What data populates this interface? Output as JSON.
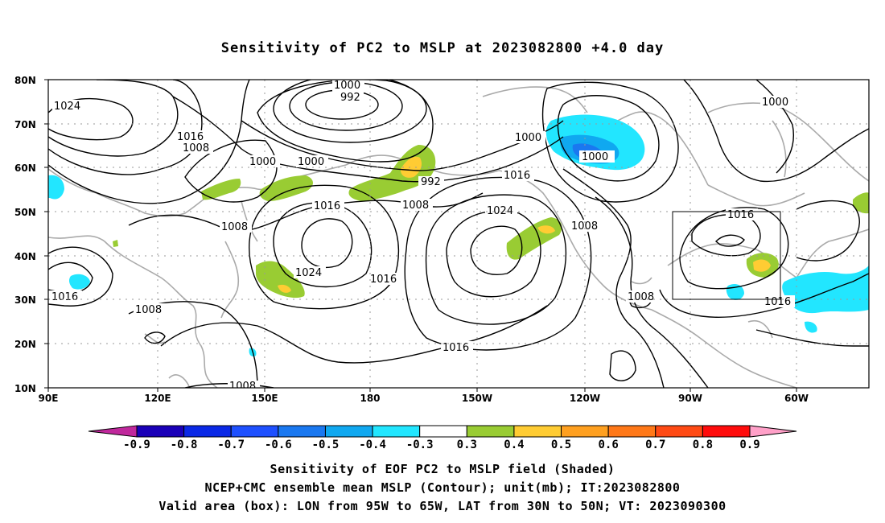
{
  "title": "Sensitivity of PC2 to MSLP at 2023082800 +4.0 day",
  "map": {
    "lat_labels": [
      "80N",
      "70N",
      "60N",
      "50N",
      "40N",
      "30N",
      "20N",
      "10N"
    ],
    "lon_labels": [
      "90E",
      "120E",
      "150E",
      "180",
      "150W",
      "120W",
      "90W",
      "60W"
    ],
    "valid_box": {
      "lon_from": "95W",
      "lon_to": "65W",
      "lat_from": "30N",
      "lat_to": "50N"
    },
    "contour_labels": [
      "1024",
      "1016",
      "1008",
      "1000",
      "992",
      "1000",
      "1000",
      "1000",
      "992",
      "1008",
      "1016",
      "1016",
      "1024",
      "1024",
      "1016",
      "1008",
      "1016",
      "1000",
      "1016",
      "1008",
      "1016",
      "1016",
      "1008",
      "1000"
    ]
  },
  "colorbar": {
    "labels": [
      "-0.9",
      "-0.8",
      "-0.7",
      "-0.6",
      "-0.5",
      "-0.4",
      "-0.3",
      "0.3",
      "0.4",
      "0.5",
      "0.6",
      "0.7",
      "0.8",
      "0.9"
    ],
    "colors": [
      "#1a00b8",
      "#0a28e6",
      "#1e50ff",
      "#1a78f0",
      "#10a8f0",
      "#22e6ff",
      "#ffffff",
      "#99cc33",
      "#ffcc33",
      "#ffa020",
      "#ff7818",
      "#ff4a14",
      "#ff0c0c"
    ],
    "low_end_color": "#c0289c",
    "high_end_color": "#ffa0c8"
  },
  "captions": {
    "line1": "Sensitivity of EOF PC2 to MSLP field (Shaded)",
    "line2": "NCEP+CMC ensemble mean MSLP (Contour); unit(mb); IT:2023082800",
    "line3": "Valid area (box): LON from 95W to 65W, LAT from 30N to 50N; VT: 2023090300"
  }
}
